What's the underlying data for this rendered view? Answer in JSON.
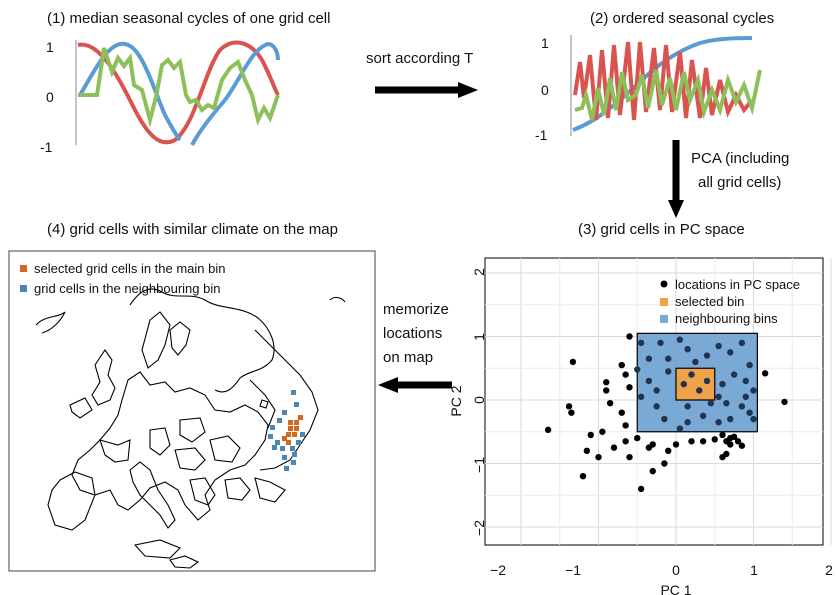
{
  "panel1": {
    "title": "(1) median seasonal cycles of one grid cell",
    "y_ticks": [
      "1",
      "0",
      "-1"
    ],
    "series_colors": [
      "#5b9bd5",
      "#d9534f",
      "#8dbf5a"
    ]
  },
  "panel2": {
    "title": "(2) ordered seasonal cycles",
    "y_ticks": [
      "1",
      "0",
      "-1"
    ]
  },
  "panel3": {
    "title": "(3) grid cells in PC space",
    "xlabel": "PC 1",
    "ylabel": "PC 2",
    "x_ticks": [
      "−2",
      "−1",
      "0",
      "1",
      "2"
    ],
    "y_ticks": [
      "2",
      "1",
      "0",
      "−1",
      "−2"
    ],
    "legend": [
      {
        "label": "locations in PC space",
        "color": "#000000",
        "shape": "circle"
      },
      {
        "label": "selected bin",
        "color": "#f0a24b",
        "shape": "square"
      },
      {
        "label": "neighbouring bins",
        "color": "#7aa9d6",
        "shape": "square"
      }
    ]
  },
  "panel4": {
    "title": "(4) grid cells with similar climate on the map",
    "legend": [
      {
        "label": "selected grid cells in the main bin",
        "color": "#d2691e"
      },
      {
        "label": "grid cells in  the neighbouring bin",
        "color": "#4a86b8"
      }
    ]
  },
  "arrows": {
    "sort": "sort according T",
    "pca_line1": "PCA (including",
    "pca_line2": "all grid cells)",
    "memorize_line1": "memorize",
    "memorize_line2": "locations",
    "memorize_line3": "on map"
  },
  "chart_data": {
    "type": "scatter",
    "xlim": [
      -2.2,
      2.3
    ],
    "ylim": [
      -2.2,
      2.2
    ],
    "selected_bin": {
      "x": [
        0,
        0.5
      ],
      "y": [
        0,
        0.5
      ]
    },
    "neighbouring_bins": {
      "x": [
        -0.5,
        1.05
      ],
      "y": [
        -0.5,
        1.05
      ]
    },
    "points": [
      [
        -1.65,
        -0.47
      ],
      [
        -1.33,
        0.6
      ],
      [
        -1.38,
        -0.1
      ],
      [
        -1.35,
        -0.2
      ],
      [
        -1.1,
        -0.55
      ],
      [
        -1.15,
        -0.8
      ],
      [
        -1.2,
        -1.2
      ],
      [
        -1.0,
        -0.9
      ],
      [
        -0.95,
        -0.5
      ],
      [
        -0.8,
        -0.75
      ],
      [
        -0.85,
        -0.05
      ],
      [
        -0.9,
        0.28
      ],
      [
        -0.9,
        0.15
      ],
      [
        -0.6,
        -0.9
      ],
      [
        -0.35,
        -0.75
      ],
      [
        -0.3,
        -1.12
      ],
      [
        -0.1,
        -0.8
      ],
      [
        -0.15,
        -1.0
      ],
      [
        -0.45,
        -1.4
      ],
      [
        -0.45,
        0.05
      ],
      [
        -0.6,
        0.2
      ],
      [
        -0.7,
        -0.2
      ],
      [
        -0.65,
        -0.4
      ],
      [
        -0.5,
        -0.6
      ],
      [
        -0.7,
        0.55
      ],
      [
        -0.65,
        0.4
      ],
      [
        -0.6,
        1.0
      ],
      [
        -0.45,
        0.9
      ],
      [
        -0.5,
        0.48
      ],
      [
        -0.35,
        0.65
      ],
      [
        -0.2,
        0.9
      ],
      [
        -0.1,
        0.65
      ],
      [
        0.05,
        0.95
      ],
      [
        0.15,
        0.8
      ],
      [
        0.25,
        0.6
      ],
      [
        0.4,
        0.7
      ],
      [
        0.55,
        0.85
      ],
      [
        0.7,
        0.75
      ],
      [
        0.85,
        0.9
      ],
      [
        0.95,
        0.55
      ],
      [
        0.75,
        0.4
      ],
      [
        0.9,
        0.3
      ],
      [
        0.6,
        0.25
      ],
      [
        0.55,
        0.05
      ],
      [
        0.65,
        -0.05
      ],
      [
        0.85,
        -0.1
      ],
      [
        0.95,
        -0.2
      ],
      [
        0.9,
        0.05
      ],
      [
        1.0,
        -0.3
      ],
      [
        0.7,
        -0.3
      ],
      [
        0.55,
        -0.35
      ],
      [
        0.35,
        -0.25
      ],
      [
        0.15,
        -0.35
      ],
      [
        0.05,
        -0.45
      ],
      [
        -0.15,
        -0.3
      ],
      [
        -0.25,
        -0.1
      ],
      [
        -0.35,
        0.3
      ],
      [
        -0.25,
        0.15
      ],
      [
        0.1,
        0.25
      ],
      [
        0.3,
        0.15
      ],
      [
        0.4,
        0.3
      ],
      [
        0.2,
        0.4
      ],
      [
        0.15,
        -0.1
      ],
      [
        0.45,
        -0.05
      ],
      [
        -0.3,
        -0.7
      ],
      [
        0.2,
        -0.65
      ],
      [
        0.35,
        -0.65
      ],
      [
        0.5,
        -0.62
      ],
      [
        0.6,
        -0.55
      ],
      [
        0.7,
        -0.6
      ],
      [
        0.65,
        -0.65
      ],
      [
        0.7,
        -0.7
      ],
      [
        0.75,
        -0.58
      ],
      [
        0.6,
        -0.9
      ],
      [
        0.65,
        -0.85
      ],
      [
        1.4,
        -0.03
      ],
      [
        1.15,
        0.42
      ],
      [
        -0.65,
        -0.65
      ],
      [
        0.0,
        -0.7
      ],
      [
        0.8,
        -0.65
      ],
      [
        0.85,
        -0.72
      ],
      [
        -0.1,
        0.45
      ],
      [
        1.0,
        0.15
      ]
    ]
  }
}
